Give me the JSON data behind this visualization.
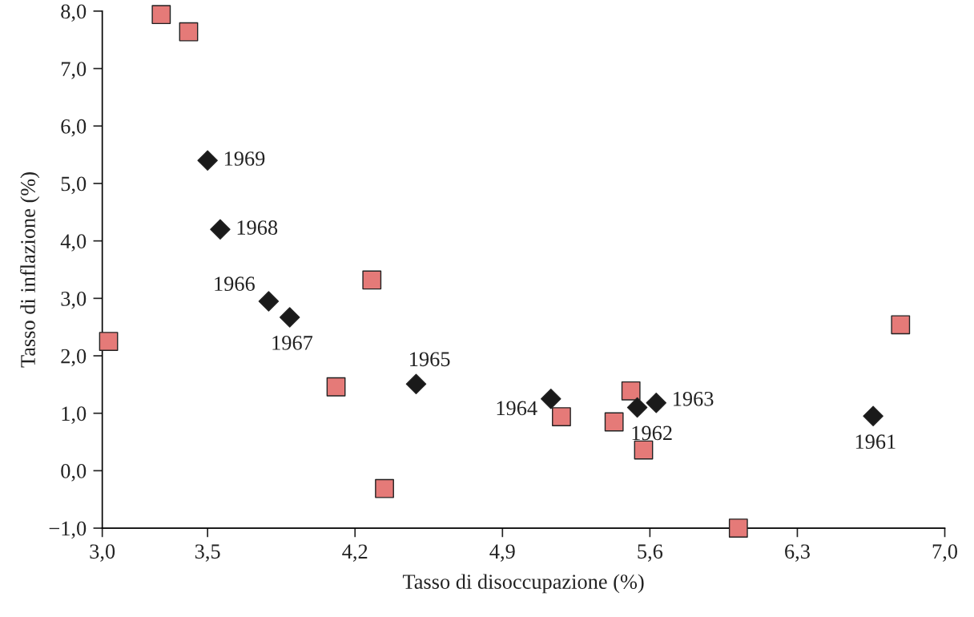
{
  "chart_data": {
    "type": "scatter",
    "xlabel": "Tasso di disoccupazione (%)",
    "ylabel": "Tasso di inflazione (%)",
    "xlim": [
      3.0,
      7.0
    ],
    "xticks": [
      {
        "value": 3.0,
        "label": "3,0"
      },
      {
        "value": 3.5,
        "label": "3,5"
      },
      {
        "value": 4.2,
        "label": "4,2"
      },
      {
        "value": 4.9,
        "label": "4,9"
      },
      {
        "value": 5.6,
        "label": "5,6"
      },
      {
        "value": 6.3,
        "label": "6,3"
      },
      {
        "value": 7.0,
        "label": "7,0"
      }
    ],
    "ylim": [
      -1.0,
      8.0
    ],
    "yticks": [
      {
        "value": -1.0,
        "label": "−1,0"
      },
      {
        "value": 0.0,
        "label": "0,0"
      },
      {
        "value": 1.0,
        "label": "1,0"
      },
      {
        "value": 2.0,
        "label": "2,0"
      },
      {
        "value": 3.0,
        "label": "3,0"
      },
      {
        "value": 4.0,
        "label": "4,0"
      },
      {
        "value": 5.0,
        "label": "5,0"
      },
      {
        "value": 6.0,
        "label": "6,0"
      },
      {
        "value": 7.0,
        "label": "7,0"
      },
      {
        "value": 8.0,
        "label": "8,0"
      }
    ],
    "grid": false,
    "series": [
      {
        "color": "#e57a78",
        "marker": "square",
        "x": [
          3.03,
          3.28,
          3.41,
          4.28,
          4.11,
          4.34,
          5.18,
          5.43,
          5.51,
          5.57,
          6.02,
          6.79
        ],
        "values": [
          2.25,
          7.94,
          7.64,
          3.32,
          1.46,
          -0.31,
          0.94,
          0.85,
          1.39,
          0.36,
          -1.0,
          2.54
        ]
      },
      {
        "color": "#1a1a1a",
        "marker": "diamond",
        "x": [
          3.5,
          3.56,
          3.79,
          3.89,
          4.49,
          5.13,
          5.54,
          5.63,
          6.66
        ],
        "values": [
          5.4,
          4.2,
          2.95,
          2.67,
          1.51,
          1.25,
          1.1,
          1.18,
          0.95
        ]
      }
    ],
    "annotations": [
      {
        "text": "1969",
        "x": 3.5,
        "y": 5.4
      },
      {
        "text": "1968",
        "x": 3.56,
        "y": 4.2
      },
      {
        "text": "1966",
        "x": 3.79,
        "y": 2.95
      },
      {
        "text": "1967",
        "x": 3.89,
        "y": 2.67
      },
      {
        "text": "1965",
        "x": 4.49,
        "y": 1.51
      },
      {
        "text": "1964",
        "x": 5.13,
        "y": 1.25
      },
      {
        "text": "1962",
        "x": 5.54,
        "y": 1.1
      },
      {
        "text": "1963",
        "x": 5.63,
        "y": 1.18
      },
      {
        "text": "1961",
        "x": 6.66,
        "y": 0.95
      }
    ]
  }
}
